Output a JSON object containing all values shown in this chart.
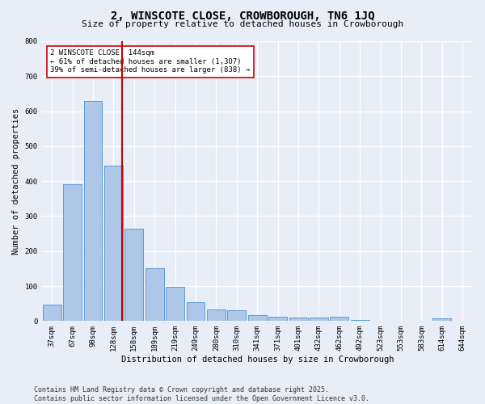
{
  "title": "2, WINSCOTE CLOSE, CROWBOROUGH, TN6 1JQ",
  "subtitle": "Size of property relative to detached houses in Crowborough",
  "xlabel": "Distribution of detached houses by size in Crowborough",
  "ylabel": "Number of detached properties",
  "categories": [
    "37sqm",
    "67sqm",
    "98sqm",
    "128sqm",
    "158sqm",
    "189sqm",
    "219sqm",
    "249sqm",
    "280sqm",
    "310sqm",
    "341sqm",
    "371sqm",
    "401sqm",
    "432sqm",
    "462sqm",
    "492sqm",
    "523sqm",
    "553sqm",
    "583sqm",
    "614sqm",
    "644sqm"
  ],
  "values": [
    47,
    390,
    630,
    445,
    265,
    150,
    97,
    55,
    32,
    30,
    17,
    13,
    10,
    10,
    13,
    2,
    0,
    0,
    0,
    8,
    0
  ],
  "bar_color": "#aec6e8",
  "bar_edge_color": "#5b9bd5",
  "ref_line_color": "#cc0000",
  "annotation_line1": "2 WINSCOTE CLOSE: 144sqm",
  "annotation_line2": "← 61% of detached houses are smaller (1,307)",
  "annotation_line3": "39% of semi-detached houses are larger (838) →",
  "annotation_box_color": "#cc0000",
  "ylim": [
    0,
    800
  ],
  "yticks": [
    0,
    100,
    200,
    300,
    400,
    500,
    600,
    700,
    800
  ],
  "footer": "Contains HM Land Registry data © Crown copyright and database right 2025.\nContains public sector information licensed under the Open Government Licence v3.0.",
  "bg_color": "#e8eef8",
  "grid_color": "#ffffff",
  "title_fontsize": 10,
  "subtitle_fontsize": 8,
  "axis_label_fontsize": 7.5,
  "tick_fontsize": 6.5,
  "annotation_fontsize": 6.5,
  "footer_fontsize": 6
}
